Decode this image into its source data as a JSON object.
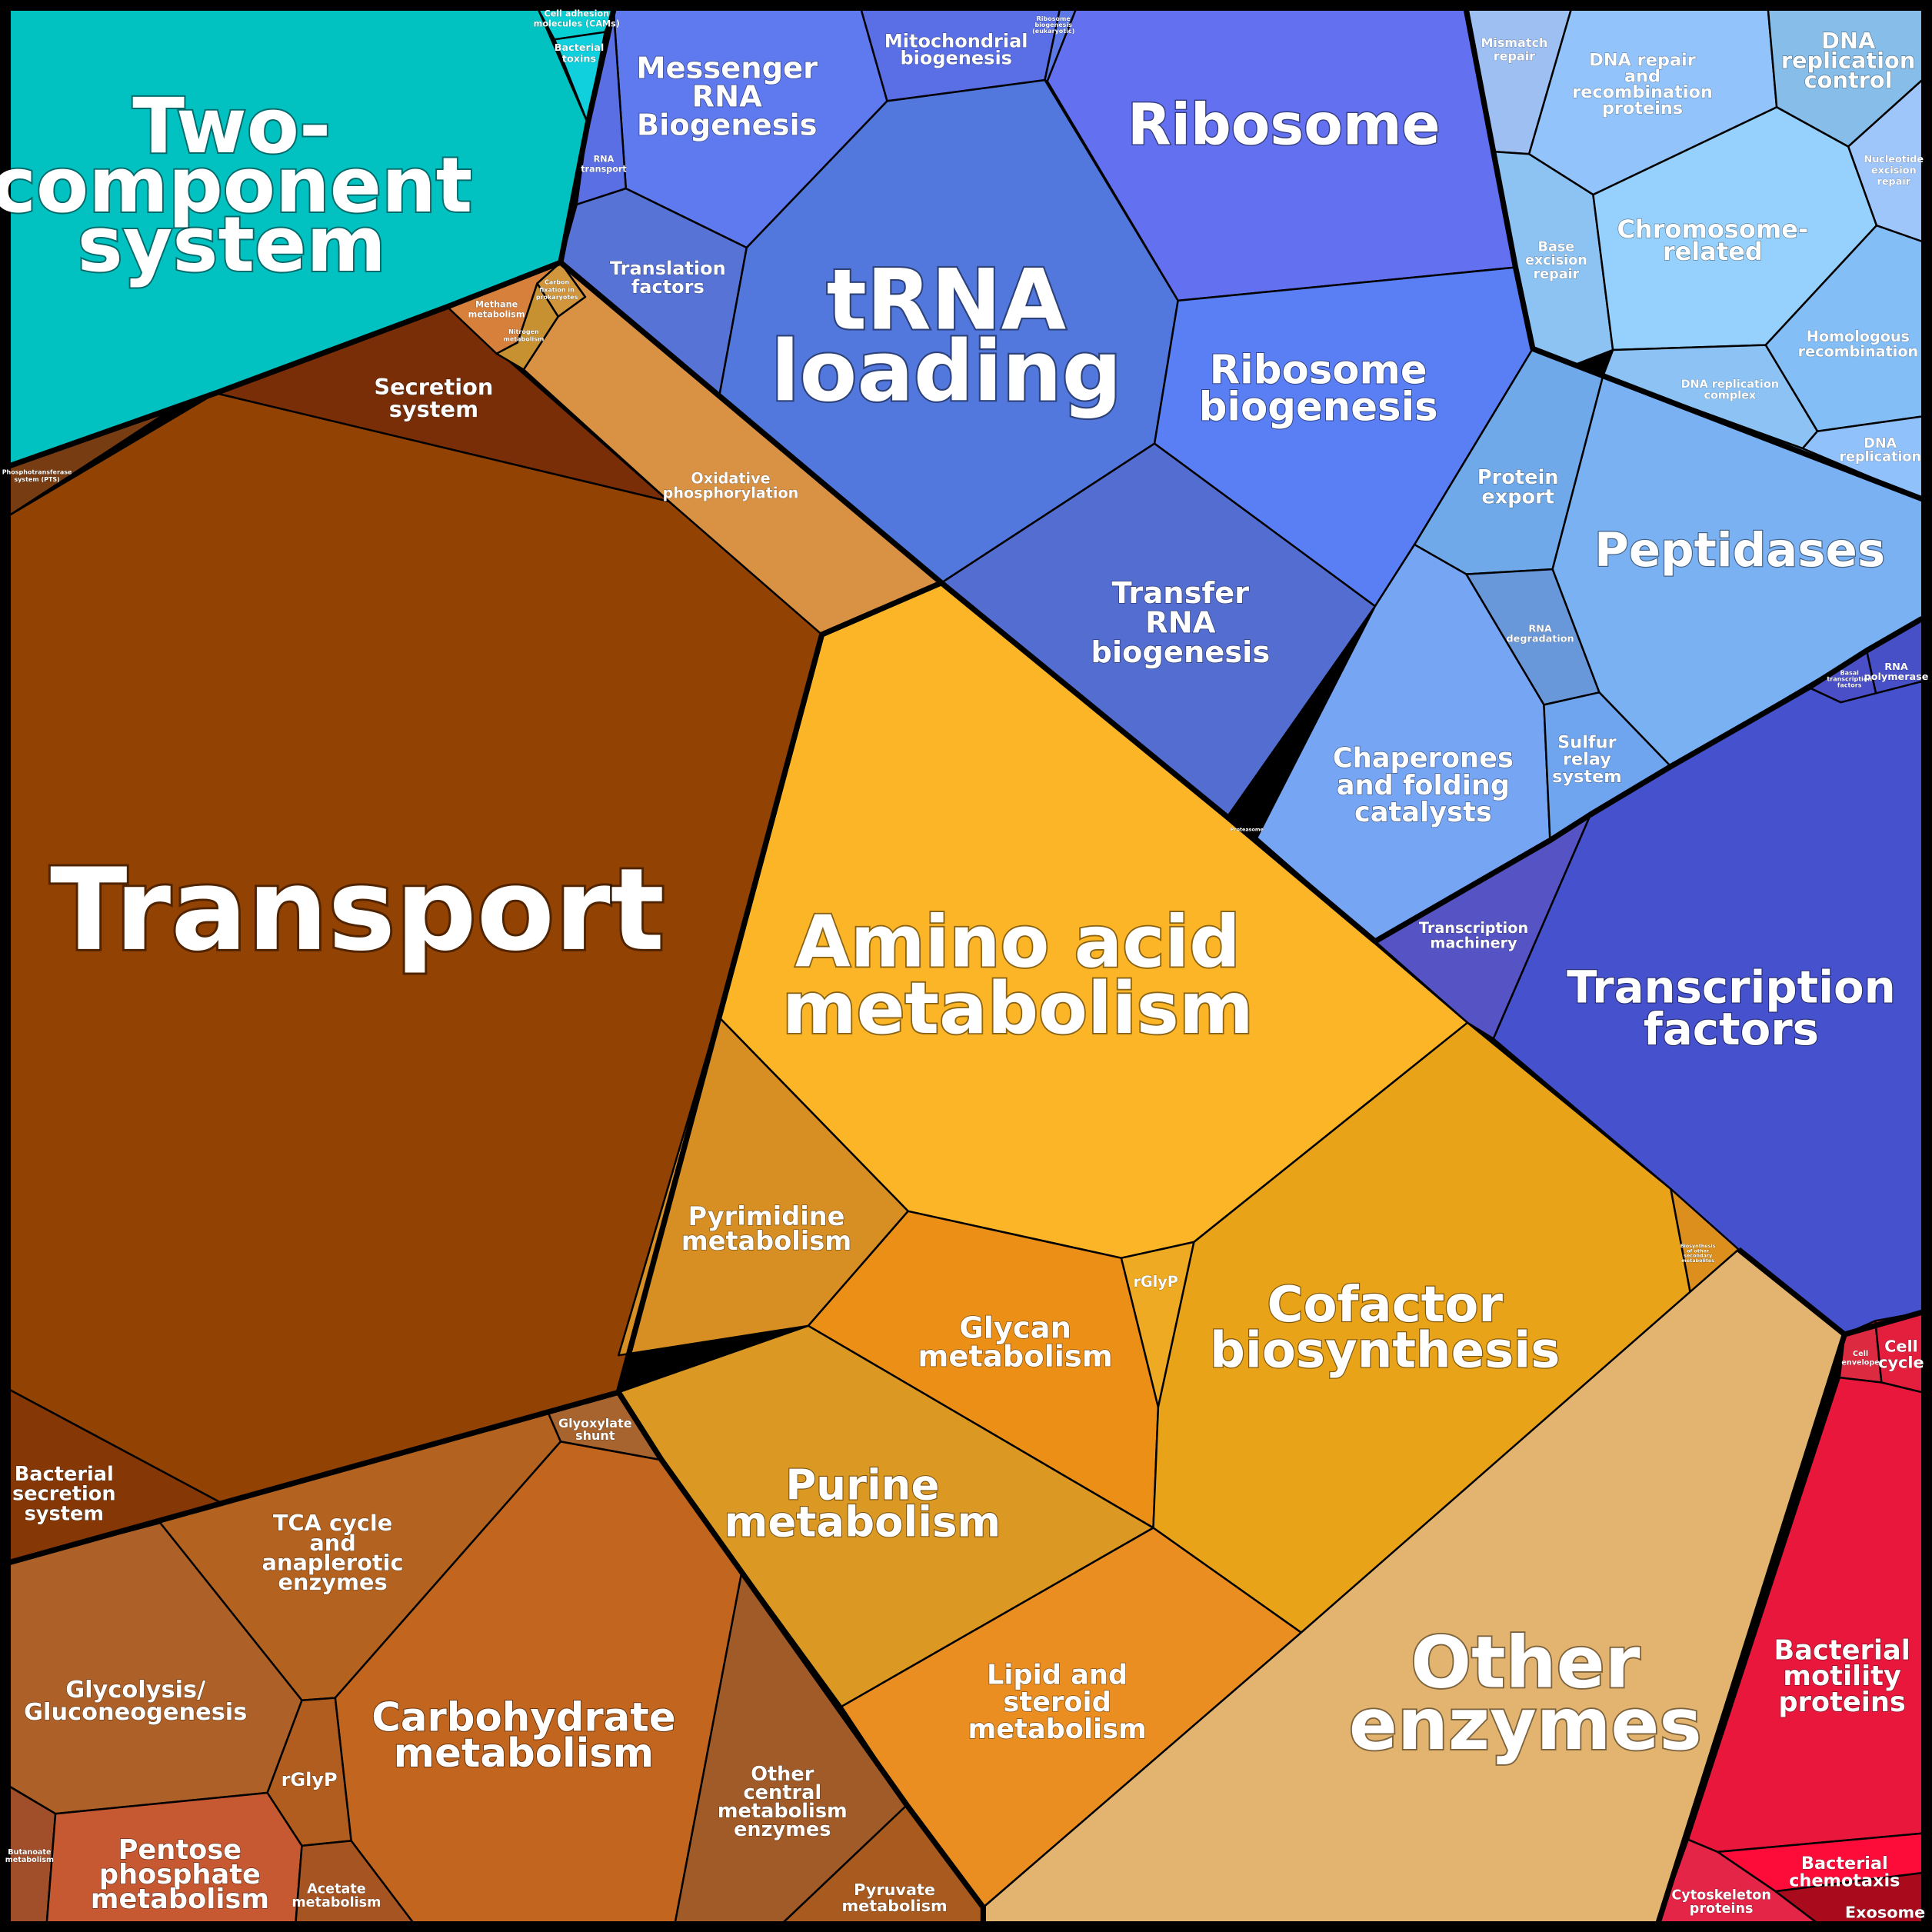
{
  "cells": [
    {
      "id": "two-component",
      "group": "environmental",
      "label": [
        "Two-",
        "component",
        "system"
      ],
      "color": "#02c1c1"
    },
    {
      "id": "cell-adhesion",
      "group": "environmental",
      "label": [
        "Cell adhesion",
        "molecules (CAMs)"
      ],
      "color": "#08cfd3"
    },
    {
      "id": "bacterial-toxins",
      "group": "environmental",
      "label": [
        "Bacterial",
        "toxins"
      ],
      "color": "#0fd0dc"
    },
    {
      "id": "transport",
      "group": "membrane",
      "label": [
        "Transport"
      ],
      "color": "#924203"
    },
    {
      "id": "secretion-system",
      "group": "membrane",
      "label": [
        "Secretion",
        "system"
      ],
      "color": "#7a2e08"
    },
    {
      "id": "phosphotransferase",
      "group": "membrane",
      "label": [
        "Phosphotransferase",
        "system (PTS)"
      ],
      "color": "#783c12"
    },
    {
      "id": "bacterial-secretion",
      "group": "membrane",
      "label": [
        "Bacterial",
        "secretion",
        "system"
      ],
      "color": "#853705"
    },
    {
      "id": "methane-metabolism",
      "group": "energy",
      "label": [
        "Methane",
        "metabolism"
      ],
      "color": "#d6803c"
    },
    {
      "id": "carbon-fixation",
      "group": "energy",
      "label": [
        "Carbon",
        "fixation in",
        "prokaryotes"
      ],
      "color": "#d1963c"
    },
    {
      "id": "nitrogen-metabolism",
      "group": "energy",
      "label": [
        "Nitrogen",
        "metabolism"
      ],
      "color": "#c79030"
    },
    {
      "id": "oxidative-phosphorylation",
      "group": "energy",
      "label": [
        "Oxidative",
        "phosphorylation"
      ],
      "color": "#d99144"
    },
    {
      "id": "messenger-rna",
      "group": "genetic",
      "label": [
        "Messenger",
        "RNA",
        "Biogenesis"
      ],
      "color": "#5f79ee"
    },
    {
      "id": "mitochondrial-biogenesis",
      "group": "genetic",
      "label": [
        "Mitochondrial",
        "biogenesis"
      ],
      "color": "#5a6ee5"
    },
    {
      "id": "ribosome-biogenesis-small",
      "group": "genetic",
      "label": [
        "Ribosome",
        "biogenesis",
        "(eukaryotic)"
      ],
      "color": "#5c77e6"
    },
    {
      "id": "ribosome",
      "group": "genetic",
      "label": [
        "Ribosome"
      ],
      "color": "#6371f0"
    },
    {
      "id": "rna-transport",
      "group": "genetic",
      "label": [
        "RNA",
        "transport"
      ],
      "color": "#5b6fe4"
    },
    {
      "id": "translation-factors",
      "group": "genetic",
      "label": [
        "Translation",
        "factors"
      ],
      "color": "#5873d6"
    },
    {
      "id": "trna-loading",
      "group": "genetic",
      "label": [
        "tRNA",
        "loading"
      ],
      "color": "#5278dd"
    },
    {
      "id": "ribosome-biogenesis",
      "group": "genetic",
      "label": [
        "Ribosome",
        "biogenesis"
      ],
      "color": "#5a7ef3"
    },
    {
      "id": "transfer-rna",
      "group": "genetic",
      "label": [
        "Transfer",
        "RNA",
        "biogenesis"
      ],
      "color": "#546dd1"
    },
    {
      "id": "mismatch-repair",
      "group": "replication",
      "label": [
        "Mismatch",
        "repair"
      ],
      "color": "#9ebff2"
    },
    {
      "id": "dna-repair-recombination",
      "group": "replication",
      "label": [
        "DNA repair",
        "and",
        "recombination",
        "proteins"
      ],
      "color": "#92c4fb"
    },
    {
      "id": "dna-replication-control",
      "group": "replication",
      "label": [
        "DNA",
        "replication",
        "control"
      ],
      "color": "#86bde9"
    },
    {
      "id": "nucleotide-excision",
      "group": "replication",
      "label": [
        "Nucleotide",
        "excision",
        "repair"
      ],
      "color": "#9ec6fb"
    },
    {
      "id": "base-excision",
      "group": "replication",
      "label": [
        "Base",
        "excision",
        "repair"
      ],
      "color": "#8dc3f3"
    },
    {
      "id": "chromosome-related",
      "group": "replication",
      "label": [
        "Chromosome-",
        "related"
      ],
      "color": "#96d0fc"
    },
    {
      "id": "homologous-recombination",
      "group": "replication",
      "label": [
        "Homologous",
        "recombination"
      ],
      "color": "#84bef6"
    },
    {
      "id": "dna-replication-complex",
      "group": "replication",
      "label": [
        "DNA replication",
        "complex"
      ],
      "color": "#8cc3f4"
    },
    {
      "id": "dna-replication",
      "group": "replication",
      "label": [
        "DNA",
        "replication"
      ],
      "color": "#91c1fb"
    },
    {
      "id": "protein-export",
      "group": "folding",
      "label": [
        "Protein",
        "export"
      ],
      "color": "#6fa9ea"
    },
    {
      "id": "peptidases",
      "group": "folding",
      "label": [
        "Peptidases"
      ],
      "color": "#7ab1f2"
    },
    {
      "id": "rna-degradation",
      "group": "folding",
      "label": [
        "RNA",
        "degradation"
      ],
      "color": "#6898da"
    },
    {
      "id": "chaperones",
      "group": "folding",
      "label": [
        "Chaperones",
        "and folding",
        "catalysts"
      ],
      "color": "#76a5f4"
    },
    {
      "id": "sulfur-relay",
      "group": "folding",
      "label": [
        "Sulfur",
        "relay",
        "system"
      ],
      "color": "#6fa4ef"
    },
    {
      "id": "proteasome",
      "group": "folding",
      "label": [
        "Proteasome"
      ],
      "color": "#7cb0f0"
    },
    {
      "id": "basal-transcription",
      "group": "transcription",
      "label": [
        "Basal",
        "transcription",
        "factors"
      ],
      "color": "#4a4fc8"
    },
    {
      "id": "rna-polymerase",
      "group": "transcription",
      "label": [
        "RNA",
        "polymerase"
      ],
      "color": "#4750c6"
    },
    {
      "id": "transcription-machinery",
      "group": "transcription",
      "label": [
        "Transcription",
        "machinery"
      ],
      "color": "#5654c4"
    },
    {
      "id": "transcription-factors",
      "group": "transcription",
      "label": [
        "Transcription",
        "factors"
      ],
      "color": "#4551cd"
    },
    {
      "id": "amino-acid-metabolism",
      "group": "metabolism",
      "label": [
        "Amino acid",
        "metabolism"
      ],
      "color": "#fbb526"
    },
    {
      "id": "pyrimidine-metabolism",
      "group": "metabolism",
      "label": [
        "Pyrimidine",
        "metabolism"
      ],
      "color": "#d78f24"
    },
    {
      "id": "glycan-metabolism",
      "group": "metabolism",
      "label": [
        "Glycan",
        "metabolism"
      ],
      "color": "#ec8f16"
    },
    {
      "id": "rglyp-amino",
      "group": "metabolism",
      "label": [
        "rGlyP"
      ],
      "color": "#edaa22"
    },
    {
      "id": "cofactor-biosynthesis",
      "group": "metabolism",
      "label": [
        "Cofactor",
        "biosynthesis"
      ],
      "color": "#e9a319"
    },
    {
      "id": "biosynthesis-secondary",
      "group": "metabolism",
      "label": [
        "Biosynthesis",
        "of other",
        "secondary",
        "metabolites"
      ],
      "color": "#dc8f1c"
    },
    {
      "id": "purine-metabolism",
      "group": "metabolism",
      "label": [
        "Purine",
        "metabolism"
      ],
      "color": "#db9822"
    },
    {
      "id": "lipid-steroid",
      "group": "metabolism",
      "label": [
        "Lipid and",
        "steroid",
        "metabolism"
      ],
      "color": "#ea8e21"
    },
    {
      "id": "other-enzymes",
      "group": "enzymes",
      "label": [
        "Other",
        "enzymes"
      ],
      "color": "#e3b46f"
    },
    {
      "id": "cell-envelope",
      "group": "cellular",
      "label": [
        "Cell",
        "envelope"
      ],
      "color": "#dc2a40"
    },
    {
      "id": "cell-cycle",
      "group": "cellular",
      "label": [
        "Cell",
        "cycle"
      ],
      "color": "#e41e3d"
    },
    {
      "id": "bacterial-motility",
      "group": "cellular",
      "label": [
        "Bacterial",
        "motility",
        "proteins"
      ],
      "color": "#ea173c"
    },
    {
      "id": "bacterial-chemotaxis",
      "group": "cellular",
      "label": [
        "Bacterial",
        "chemotaxis"
      ],
      "color": "#fd0c3a"
    },
    {
      "id": "cytoskeleton",
      "group": "cellular",
      "label": [
        "Cytoskeleton",
        "proteins"
      ],
      "color": "#e42547"
    },
    {
      "id": "exosome",
      "group": "cellular",
      "label": [
        "Exosome"
      ],
      "color": "#a90b1c"
    },
    {
      "id": "glyoxylate-shunt",
      "group": "carbohydrate",
      "label": [
        "Glyoxylate",
        "shunt"
      ],
      "color": "#a7642f"
    },
    {
      "id": "tca-cycle",
      "group": "carbohydrate",
      "label": [
        "TCA cycle",
        "and",
        "anaplerotic",
        "enzymes"
      ],
      "color": "#b4621f"
    },
    {
      "id": "glycolysis",
      "group": "carbohydrate",
      "label": [
        "Glycolysis/",
        "Gluconeogenesis"
      ],
      "color": "#ad6128"
    },
    {
      "id": "carbohydrate-metabolism",
      "group": "carbohydrate",
      "label": [
        "Carbohydrate",
        "metabolism"
      ],
      "color": "#c1651f"
    },
    {
      "id": "rglyp-carb",
      "group": "carbohydrate",
      "label": [
        "rGlyP"
      ],
      "color": "#b15d1f"
    },
    {
      "id": "butanoate",
      "group": "carbohydrate",
      "label": [
        "Butanoate",
        "metabolism"
      ],
      "color": "#a14e2b"
    },
    {
      "id": "pentose-phosphate",
      "group": "carbohydrate",
      "label": [
        "Pentose",
        "phosphate",
        "metabolism"
      ],
      "color": "#c65932"
    },
    {
      "id": "acetate",
      "group": "carbohydrate",
      "label": [
        "Acetate",
        "metabolism"
      ],
      "color": "#a75423"
    },
    {
      "id": "other-central",
      "group": "carbohydrate",
      "label": [
        "Other",
        "central",
        "metabolism",
        "enzymes"
      ],
      "color": "#a15b28"
    },
    {
      "id": "pyruvate",
      "group": "carbohydrate",
      "label": [
        "Pyruvate",
        "metabolism"
      ],
      "color": "#a95b1f"
    }
  ]
}
